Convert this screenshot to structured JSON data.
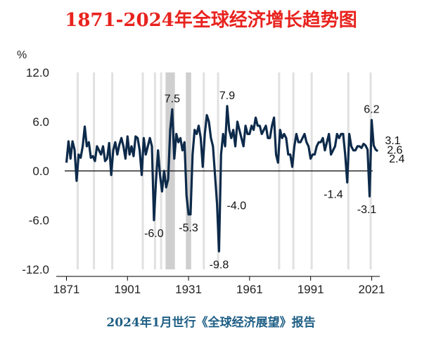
{
  "title": "1871-2024年全球经济增长趋势图",
  "footer": "2024年1月世行《全球经济展望》报告",
  "chart_data": {
    "type": "line",
    "ylabel": "%",
    "ylim": [
      -12,
      12
    ],
    "xlim": [
      1866,
      2025
    ],
    "yticks": [
      "12.0",
      "6.0",
      "0.0",
      "-6.0",
      "-12.0"
    ],
    "ytick_values": [
      12,
      6,
      0,
      -6,
      -12
    ],
    "xticks": [
      "1871",
      "1901",
      "1931",
      "1961",
      "1991",
      "2021"
    ],
    "xtick_values": [
      1871,
      1901,
      1931,
      1961,
      1991,
      2021
    ],
    "recession_bands": [
      [
        1876,
        1876.3
      ],
      [
        1884,
        1884.3
      ],
      [
        1893,
        1893.3
      ],
      [
        1908,
        1908.3
      ],
      [
        1914,
        1914.6
      ],
      [
        1917,
        1917.3
      ],
      [
        1921,
        1921.3
      ],
      [
        1930,
        1932
      ],
      [
        1938,
        1938.3
      ],
      [
        1945,
        1946
      ],
      [
        1975,
        1975.3
      ],
      [
        1982,
        1982.3
      ],
      [
        1991,
        1991.3
      ],
      [
        2009,
        2009.4
      ],
      [
        2020,
        2020.5
      ]
    ],
    "shaded_periods": [
      [
        1919.7,
        1924.3
      ],
      [
        1929.7,
        1932.3
      ]
    ],
    "colors": {
      "line": "#0d2a4a",
      "band": "#e1e1e1",
      "shade": "#cfcfcf"
    },
    "series": [
      {
        "x": [
          1871,
          1872,
          1873,
          1874,
          1875,
          1876,
          1877,
          1878,
          1879,
          1880,
          1881,
          1882,
          1883,
          1884,
          1885,
          1886,
          1887,
          1888,
          1889,
          1890,
          1891,
          1892,
          1893,
          1894,
          1895,
          1896,
          1897,
          1898,
          1899,
          1900,
          1901,
          1902,
          1903,
          1904,
          1905,
          1906,
          1907,
          1908,
          1909,
          1910,
          1911,
          1912,
          1913,
          1914,
          1915,
          1916,
          1917,
          1918,
          1919,
          1920,
          1921,
          1922,
          1923,
          1924,
          1925,
          1926,
          1927,
          1928,
          1929,
          1930,
          1931,
          1932,
          1933,
          1934,
          1935,
          1936,
          1937,
          1938,
          1939,
          1940,
          1941,
          1942,
          1943,
          1944,
          1945,
          1946,
          1947,
          1948,
          1949,
          1950,
          1951,
          1952,
          1953,
          1954,
          1955,
          1956,
          1957,
          1958,
          1959,
          1960,
          1961,
          1962,
          1963,
          1964,
          1965,
          1966,
          1967,
          1968,
          1969,
          1970,
          1971,
          1972,
          1973,
          1974,
          1975,
          1976,
          1977,
          1978,
          1979,
          1980,
          1981,
          1982,
          1983,
          1984,
          1985,
          1986,
          1987,
          1988,
          1989,
          1990,
          1991,
          1992,
          1993,
          1994,
          1995,
          1996,
          1997,
          1998,
          1999,
          2000,
          2001,
          2002,
          2003,
          2004,
          2005,
          2006,
          2007,
          2008,
          2009,
          2010,
          2011,
          2012,
          2013,
          2014,
          2015,
          2016,
          2017,
          2018,
          2019,
          2020,
          2021,
          2022,
          2023,
          2024
        ],
        "y": [
          1.0,
          3.6,
          1.5,
          3.6,
          2.6,
          -1.2,
          2.0,
          1.6,
          3.0,
          5.4,
          3.0,
          3.5,
          1.6,
          1.8,
          1.2,
          3.0,
          2.5,
          2.0,
          3.0,
          1.2,
          1.5,
          3.4,
          -0.5,
          2.5,
          3.5,
          2.0,
          3.2,
          4.0,
          3.0,
          1.5,
          4.2,
          2.0,
          3.0,
          1.8,
          4.2,
          4.0,
          2.5,
          -0.5,
          4.0,
          2.0,
          3.0,
          4.0,
          3.0,
          -6.0,
          -1.2,
          2.5,
          -0.5,
          -2.5,
          0.0,
          -2.0,
          -1.0,
          5.0,
          7.5,
          1.5,
          4.5,
          3.5,
          4.0,
          2.5,
          3.5,
          -3.0,
          -5.3,
          -5.3,
          2.0,
          5.0,
          4.5,
          5.5,
          4.0,
          0.5,
          4.5,
          6.8,
          6.0,
          4.0,
          3.0,
          -0.5,
          -4.0,
          -9.8,
          2.0,
          4.5,
          3.0,
          7.9,
          5.0,
          4.0,
          5.0,
          3.0,
          6.0,
          5.0,
          4.0,
          3.0,
          5.5,
          4.5,
          4.5,
          5.5,
          5.0,
          6.5,
          5.5,
          5.5,
          4.5,
          5.0,
          5.5,
          4.0,
          4.0,
          5.5,
          6.5,
          2.0,
          1.0,
          5.0,
          4.0,
          4.5,
          4.0,
          2.0,
          2.0,
          0.5,
          3.0,
          4.5,
          3.5,
          3.5,
          4.0,
          4.5,
          3.5,
          3.0,
          1.5,
          2.0,
          2.0,
          3.0,
          3.5,
          3.5,
          4.0,
          2.5,
          3.5,
          4.5,
          2.0,
          2.5,
          3.0,
          4.5,
          4.0,
          4.5,
          4.5,
          2.0,
          -1.4,
          4.5,
          3.0,
          2.5,
          2.5,
          3.0,
          3.0,
          2.8,
          3.3,
          3.1,
          2.6,
          -3.1,
          6.2,
          3.1,
          2.6,
          2.4
        ]
      }
    ],
    "annotations": [
      {
        "text": "7.5",
        "x": 1923,
        "y": 7.5,
        "pos": "above"
      },
      {
        "text": "7.9",
        "x": 1950,
        "y": 7.9,
        "pos": "above"
      },
      {
        "text": "6.2",
        "x": 2021,
        "y": 6.2,
        "pos": "above"
      },
      {
        "text": "3.1",
        "x": 2022,
        "y": 3.1,
        "pos": "right"
      },
      {
        "text": "2.6",
        "x": 2023,
        "y": 2.6,
        "pos": "right"
      },
      {
        "text": "2.4",
        "x": 2024,
        "y": 2.4,
        "pos": "right"
      },
      {
        "text": "-6.0",
        "x": 1914,
        "y": -6.0,
        "pos": "below"
      },
      {
        "text": "-5.3",
        "x": 1931,
        "y": -5.3,
        "pos": "below"
      },
      {
        "text": "-9.8",
        "x": 1946,
        "y": -9.8,
        "pos": "below"
      },
      {
        "text": "-4.0",
        "x": 1945,
        "y": -4.0,
        "pos": "right"
      },
      {
        "text": "-1.4",
        "x": 2009,
        "y": -1.4,
        "pos": "left"
      },
      {
        "text": "-3.1",
        "x": 2020,
        "y": -3.1,
        "pos": "below"
      }
    ]
  }
}
